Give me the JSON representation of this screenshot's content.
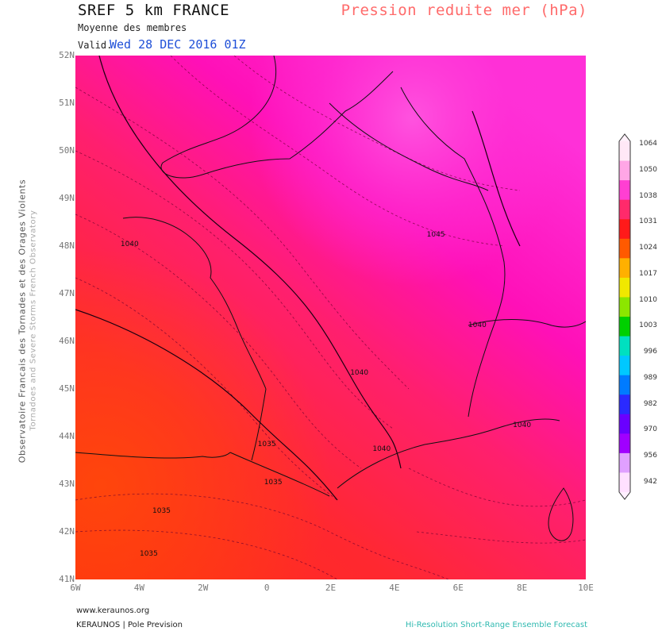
{
  "header": {
    "title": "SREF 5 km FRANCE",
    "subtitle": "Moyenne des membres",
    "valid_label": "Valid.",
    "valid_value": "Wed 28 DEC 2016 01Z",
    "parameter": "Pression reduite mer (hPa)"
  },
  "side_text": {
    "line1": "Observatoire Francais des Tornades et des Orages Violents",
    "line2": "Tornadoes and Severe Storms French Observatory"
  },
  "footer": {
    "website": "www.keraunos.org",
    "org": "KERAUNOS | Pole Prevision",
    "tagline": "Hi-Resolution Short-Range Ensemble Forecast"
  },
  "map": {
    "lat_labels": [
      "52N",
      "51N",
      "50N",
      "49N",
      "48N",
      "47N",
      "46N",
      "45N",
      "44N",
      "43N",
      "42N",
      "41N"
    ],
    "lon_labels": [
      "6W",
      "4W",
      "2W",
      "0",
      "2E",
      "4E",
      "6E",
      "8E",
      "10E"
    ],
    "contour_labels": [
      {
        "text": "1040",
        "lon": -4.3,
        "lat": 48.0
      },
      {
        "text": "1045",
        "lon": 5.3,
        "lat": 48.2
      },
      {
        "text": "1040",
        "lon": 2.9,
        "lat": 45.3
      },
      {
        "text": "1040",
        "lon": 3.6,
        "lat": 43.7
      },
      {
        "text": "1040",
        "lon": 8.0,
        "lat": 44.2
      },
      {
        "text": "1040",
        "lon": 6.6,
        "lat": 46.3
      },
      {
        "text": "1035",
        "lon": 0.0,
        "lat": 43.8
      },
      {
        "text": "1035",
        "lon": 0.2,
        "lat": 43.0
      },
      {
        "text": "1035",
        "lon": -3.3,
        "lat": 42.4
      },
      {
        "text": "1035",
        "lon": -3.7,
        "lat": 41.5
      }
    ]
  },
  "colorbar": {
    "labels": [
      "1064",
      "1050",
      "1038",
      "1031",
      "1024",
      "1017",
      "1010",
      "1003",
      "996",
      "989",
      "982",
      "970",
      "956",
      "942"
    ],
    "colors": [
      "#ffe8f6",
      "#ffa6e6",
      "#ff3fd2",
      "#ff2a6b",
      "#ff1a1a",
      "#ff5a00",
      "#ffb000",
      "#f0e800",
      "#8ce600",
      "#00d000",
      "#00e0c0",
      "#00c8ff",
      "#007bff",
      "#2a2aff",
      "#6a00ff",
      "#a000ff",
      "#e0a0ff",
      "#ffe0ff"
    ]
  }
}
